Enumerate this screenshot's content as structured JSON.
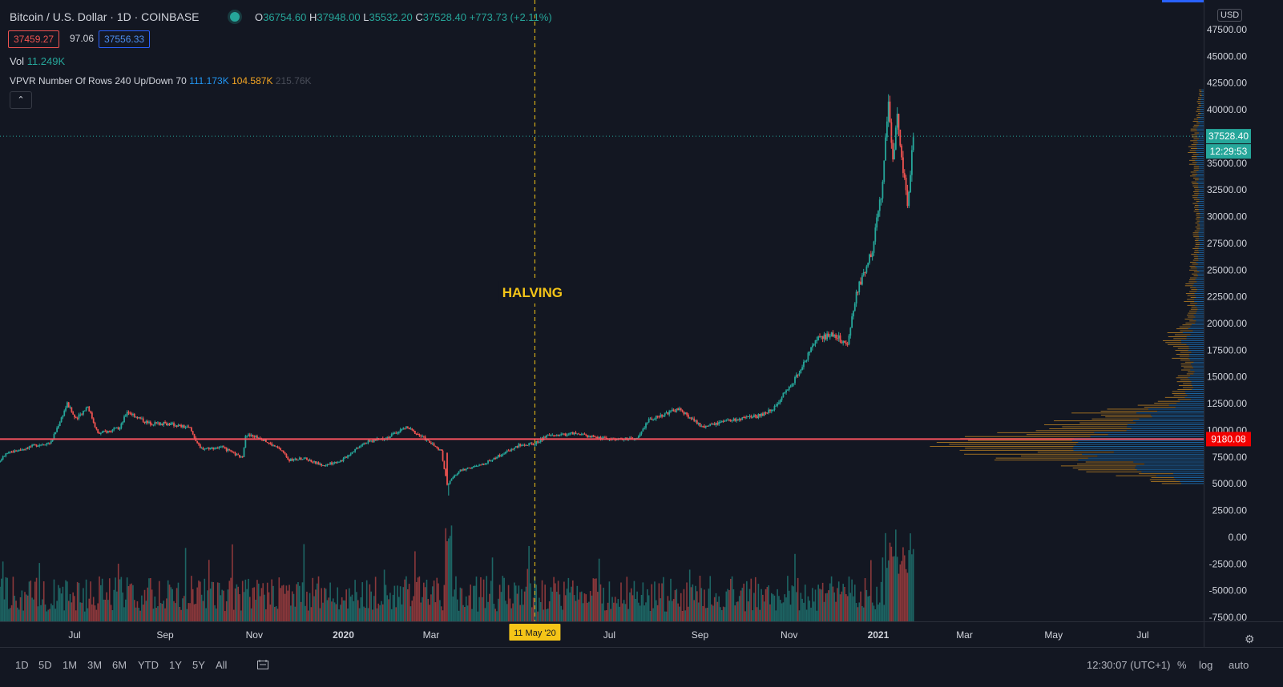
{
  "header": {
    "symbol": "Bitcoin / U.S. Dollar · 1D · COINBASE",
    "o_key": "O",
    "o_val": "36754.60",
    "h_key": "H",
    "h_val": "37948.00",
    "l_key": "L",
    "l_val": "35532.20",
    "c_key": "C",
    "c_val": "37528.40",
    "change": "+773.73 (+2.11%)",
    "bid": "37459.27",
    "spread": "97.06",
    "ask": "37556.33",
    "vol_label": "Vol",
    "vol_value": "11.249K",
    "vpvr_label": "VPVR Number Of Rows 240 Up/Down 70",
    "vpvr_up": "111.173K",
    "vpvr_down": "104.587K",
    "vpvr_total": "215.76K",
    "collapse_glyph": "⌃",
    "currency": "USD"
  },
  "annotations": {
    "halving_label": "HALVING",
    "halving_date_label": "11 May '20",
    "last_price_label": "37528.40",
    "countdown_label": "12:29:53",
    "poc_label": "9180.08"
  },
  "colors": {
    "up": "#26a69a",
    "down": "#ef5350",
    "bg": "#131722",
    "poc": "#f7525f",
    "vpvr_up": "#2196f3",
    "vpvr_down": "#f5a623",
    "halving": "#f5c518"
  },
  "chart_data": {
    "type": "candlestick",
    "x_tick_labels": [
      "Jul",
      "Sep",
      "Nov",
      "2020",
      "Mar",
      "Jul",
      "Sep",
      "Nov",
      "2021",
      "Mar",
      "May",
      "Jul"
    ],
    "x_tick_dates": [
      "2019-07-01",
      "2019-09-01",
      "2019-11-01",
      "2020-01-01",
      "2020-03-01",
      "2020-07-01",
      "2020-09-01",
      "2020-11-01",
      "2021-01-01",
      "2021-03-01",
      "2021-05-01",
      "2021-07-01"
    ],
    "x_range": [
      "2019-05-01",
      "2021-08-15"
    ],
    "y_tick_labels": [
      "47500.00",
      "45000.00",
      "42500.00",
      "40000.00",
      "37500.00",
      "35000.00",
      "32500.00",
      "30000.00",
      "27500.00",
      "25000.00",
      "22500.00",
      "20000.00",
      "17500.00",
      "15000.00",
      "12500.00",
      "10000.00",
      "7500.00",
      "5000.00",
      "2500.00",
      "0.00",
      "-2500.00",
      "-5000.00",
      "-7500.00"
    ],
    "y_range": [
      -7500,
      47500
    ],
    "price_line_value": 37528.4,
    "poc_value": 9180.08,
    "halving_date": "2020-05-11",
    "price_path": [
      [
        "2019-05-02",
        5800
      ],
      [
        "2019-05-15",
        7800
      ],
      [
        "2019-06-01",
        8500
      ],
      [
        "2019-06-15",
        8900
      ],
      [
        "2019-06-26",
        12500
      ],
      [
        "2019-07-02",
        11000
      ],
      [
        "2019-07-10",
        12300
      ],
      [
        "2019-07-17",
        9700
      ],
      [
        "2019-08-01",
        10200
      ],
      [
        "2019-08-06",
        11800
      ],
      [
        "2019-08-20",
        10700
      ],
      [
        "2019-09-05",
        10600
      ],
      [
        "2019-09-18",
        10200
      ],
      [
        "2019-09-25",
        8300
      ],
      [
        "2019-10-10",
        8400
      ],
      [
        "2019-10-24",
        7400
      ],
      [
        "2019-10-26",
        9600
      ],
      [
        "2019-11-05",
        9300
      ],
      [
        "2019-11-20",
        8100
      ],
      [
        "2019-11-25",
        7200
      ],
      [
        "2019-12-05",
        7400
      ],
      [
        "2019-12-18",
        6700
      ],
      [
        "2019-12-31",
        7200
      ],
      [
        "2020-01-14",
        8800
      ],
      [
        "2020-02-01",
        9400
      ],
      [
        "2020-02-13",
        10300
      ],
      [
        "2020-02-25",
        9300
      ],
      [
        "2020-03-08",
        8000
      ],
      [
        "2020-03-12",
        4900
      ],
      [
        "2020-03-20",
        6200
      ],
      [
        "2020-04-05",
        6800
      ],
      [
        "2020-04-30",
        8600
      ],
      [
        "2020-05-10",
        8700
      ],
      [
        "2020-05-20",
        9500
      ],
      [
        "2020-06-05",
        9700
      ],
      [
        "2020-07-01",
        9200
      ],
      [
        "2020-07-20",
        9200
      ],
      [
        "2020-07-28",
        11000
      ],
      [
        "2020-08-17",
        12000
      ],
      [
        "2020-09-03",
        10300
      ],
      [
        "2020-09-20",
        10900
      ],
      [
        "2020-10-10",
        11300
      ],
      [
        "2020-10-20",
        11900
      ],
      [
        "2020-11-05",
        14800
      ],
      [
        "2020-11-20",
        18500
      ],
      [
        "2020-12-01",
        19000
      ],
      [
        "2020-12-11",
        18000
      ],
      [
        "2020-12-17",
        22800
      ],
      [
        "2020-12-28",
        27000
      ],
      [
        "2021-01-03",
        32000
      ],
      [
        "2021-01-08",
        40500
      ],
      [
        "2021-01-11",
        35500
      ],
      [
        "2021-01-14",
        39100
      ],
      [
        "2021-01-21",
        31000
      ],
      [
        "2021-01-25",
        37528
      ]
    ],
    "vpvr_profile": [
      [
        5000,
        40
      ],
      [
        6000,
        110
      ],
      [
        7000,
        175
      ],
      [
        7500,
        250
      ],
      [
        8000,
        270
      ],
      [
        8500,
        290
      ],
      [
        9000,
        300
      ],
      [
        9180,
        310
      ],
      [
        9500,
        290
      ],
      [
        10000,
        230
      ],
      [
        10500,
        210
      ],
      [
        11000,
        170
      ],
      [
        11500,
        140
      ],
      [
        12000,
        120
      ],
      [
        12500,
        60
      ],
      [
        13000,
        40
      ],
      [
        14000,
        30
      ],
      [
        16000,
        25
      ],
      [
        18000,
        45
      ],
      [
        19000,
        40
      ],
      [
        20000,
        20
      ],
      [
        23000,
        20
      ],
      [
        25000,
        15
      ],
      [
        27000,
        12
      ],
      [
        30000,
        10
      ],
      [
        32000,
        12
      ],
      [
        34000,
        14
      ],
      [
        36000,
        16
      ],
      [
        38000,
        14
      ],
      [
        40000,
        8
      ],
      [
        42000,
        5
      ]
    ]
  },
  "bottom_bar": {
    "timeframes": [
      "1D",
      "5D",
      "1M",
      "3M",
      "6M",
      "YTD",
      "1Y",
      "5Y",
      "All"
    ],
    "clock": "12:30:07 (UTC+1)",
    "percent": "%",
    "log": "log",
    "auto": "auto",
    "gear_icon": "gear-icon",
    "range_icon": "calendar-range-icon"
  }
}
